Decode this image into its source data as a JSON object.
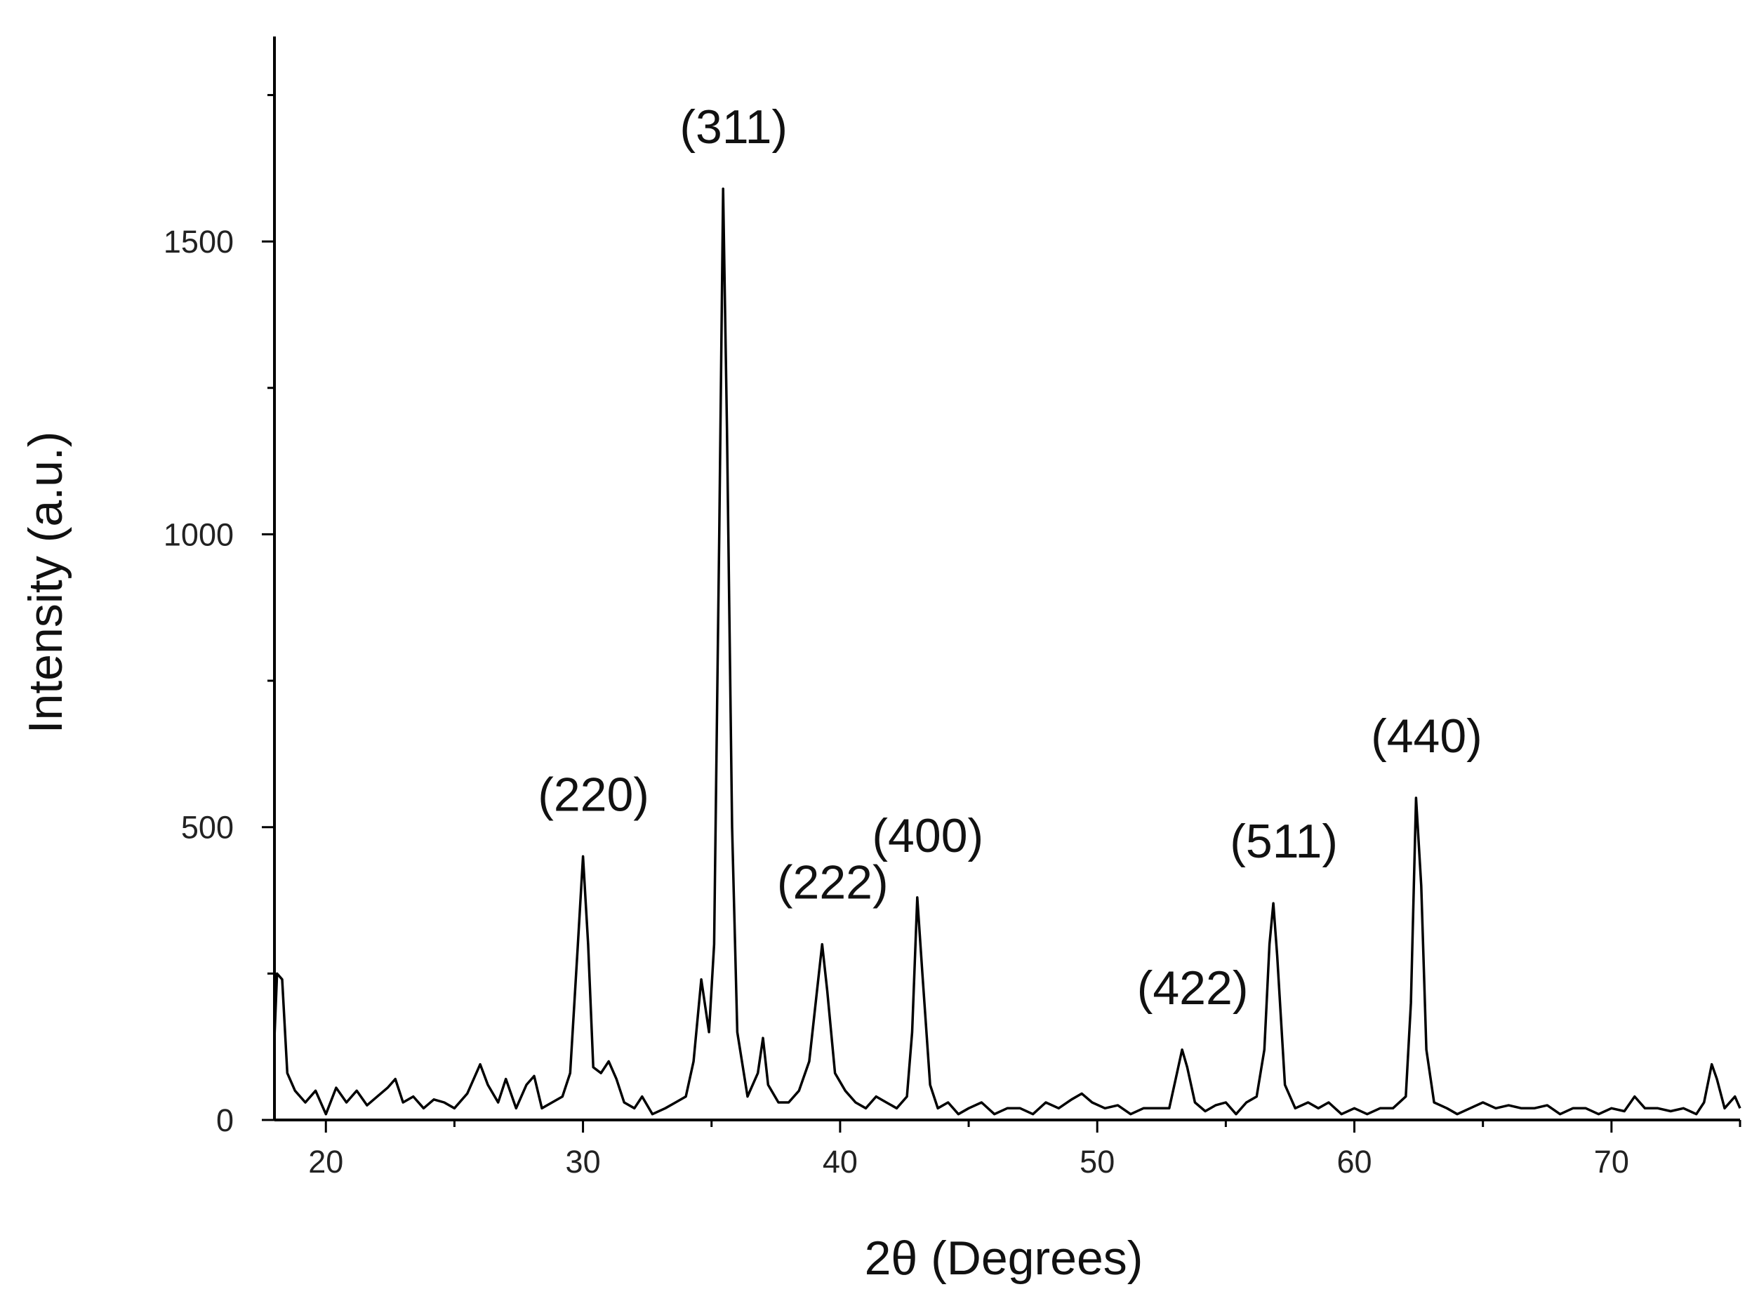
{
  "chart_data": {
    "type": "line",
    "x_label": "2θ (Degrees)",
    "y_label": "Intensity (a.u.)",
    "xlim": [
      18,
      75
    ],
    "ylim": [
      0,
      1850
    ],
    "xticks": [
      20,
      30,
      40,
      50,
      60,
      70
    ],
    "yticks": [
      0,
      500,
      1000,
      1500
    ],
    "minor_xticks": [
      25,
      35,
      45,
      55,
      65,
      75
    ],
    "minor_yticks": [
      250,
      750,
      1250,
      1750
    ],
    "x": [
      18.0,
      18.1,
      18.3,
      18.5,
      18.8,
      19.2,
      19.6,
      20.0,
      20.4,
      20.8,
      21.2,
      21.6,
      22.0,
      22.4,
      22.7,
      23.0,
      23.4,
      23.8,
      24.2,
      24.6,
      25.0,
      25.5,
      26.0,
      26.3,
      26.7,
      27.0,
      27.4,
      27.8,
      28.1,
      28.4,
      28.8,
      29.2,
      29.5,
      29.8,
      30.0,
      30.2,
      30.4,
      30.7,
      31.0,
      31.3,
      31.6,
      32.0,
      32.3,
      32.7,
      33.2,
      33.6,
      34.0,
      34.3,
      34.6,
      34.9,
      35.1,
      35.3,
      35.45,
      35.6,
      35.8,
      36.0,
      36.4,
      36.8,
      37.0,
      37.2,
      37.6,
      38.0,
      38.4,
      38.8,
      39.1,
      39.3,
      39.5,
      39.8,
      40.2,
      40.6,
      41.0,
      41.4,
      41.8,
      42.2,
      42.6,
      42.8,
      43.0,
      43.2,
      43.5,
      43.8,
      44.2,
      44.6,
      45.0,
      45.5,
      46.0,
      46.5,
      47.0,
      47.5,
      48.0,
      48.5,
      49.0,
      49.4,
      49.8,
      50.3,
      50.8,
      51.3,
      51.8,
      52.3,
      52.8,
      53.1,
      53.3,
      53.5,
      53.8,
      54.2,
      54.6,
      55.0,
      55.4,
      55.8,
      56.2,
      56.5,
      56.7,
      56.85,
      57.0,
      57.3,
      57.7,
      58.2,
      58.6,
      59.0,
      59.5,
      60.0,
      60.5,
      61.0,
      61.5,
      62.0,
      62.2,
      62.4,
      62.6,
      62.8,
      63.1,
      63.6,
      64.0,
      64.5,
      65.0,
      65.5,
      66.0,
      66.5,
      67.0,
      67.5,
      68.0,
      68.5,
      69.0,
      69.5,
      70.0,
      70.5,
      70.9,
      71.3,
      71.8,
      72.3,
      72.8,
      73.3,
      73.6,
      73.9,
      74.1,
      74.4,
      74.8,
      75.0
    ],
    "series": [
      {
        "color": "#000000",
        "values": [
          140,
          250,
          240,
          80,
          50,
          30,
          50,
          10,
          55,
          30,
          50,
          25,
          40,
          55,
          70,
          30,
          40,
          20,
          35,
          30,
          20,
          45,
          95,
          60,
          30,
          70,
          20,
          60,
          75,
          20,
          30,
          40,
          80,
          300,
          450,
          300,
          90,
          80,
          100,
          70,
          30,
          20,
          40,
          10,
          20,
          30,
          40,
          100,
          240,
          150,
          300,
          1000,
          1590,
          1180,
          500,
          150,
          40,
          80,
          140,
          60,
          30,
          30,
          50,
          100,
          220,
          300,
          220,
          80,
          50,
          30,
          20,
          40,
          30,
          20,
          40,
          150,
          380,
          250,
          60,
          20,
          30,
          10,
          20,
          30,
          10,
          20,
          20,
          10,
          30,
          20,
          35,
          45,
          30,
          20,
          25,
          10,
          20,
          20,
          20,
          80,
          120,
          90,
          30,
          15,
          25,
          30,
          10,
          30,
          40,
          120,
          300,
          370,
          280,
          60,
          20,
          30,
          20,
          30,
          10,
          20,
          10,
          20,
          20,
          40,
          200,
          550,
          400,
          120,
          30,
          20,
          10,
          20,
          30,
          20,
          25,
          20,
          20,
          25,
          10,
          20,
          20,
          10,
          20,
          15,
          40,
          20,
          20,
          15,
          20,
          10,
          30,
          95,
          70,
          20,
          40,
          20
        ]
      }
    ],
    "annotations": [
      {
        "text": "(220)",
        "x": 30.0,
        "y": 450
      },
      {
        "text": "(311)",
        "x": 35.45,
        "y": 1590
      },
      {
        "text": "(222)",
        "x": 39.3,
        "y": 300
      },
      {
        "text": "(400)",
        "x": 43.0,
        "y": 380
      },
      {
        "text": "(422)",
        "x": 53.3,
        "y": 120
      },
      {
        "text": "(511)",
        "x": 56.85,
        "y": 370
      },
      {
        "text": "(440)",
        "x": 62.4,
        "y": 550
      }
    ]
  }
}
